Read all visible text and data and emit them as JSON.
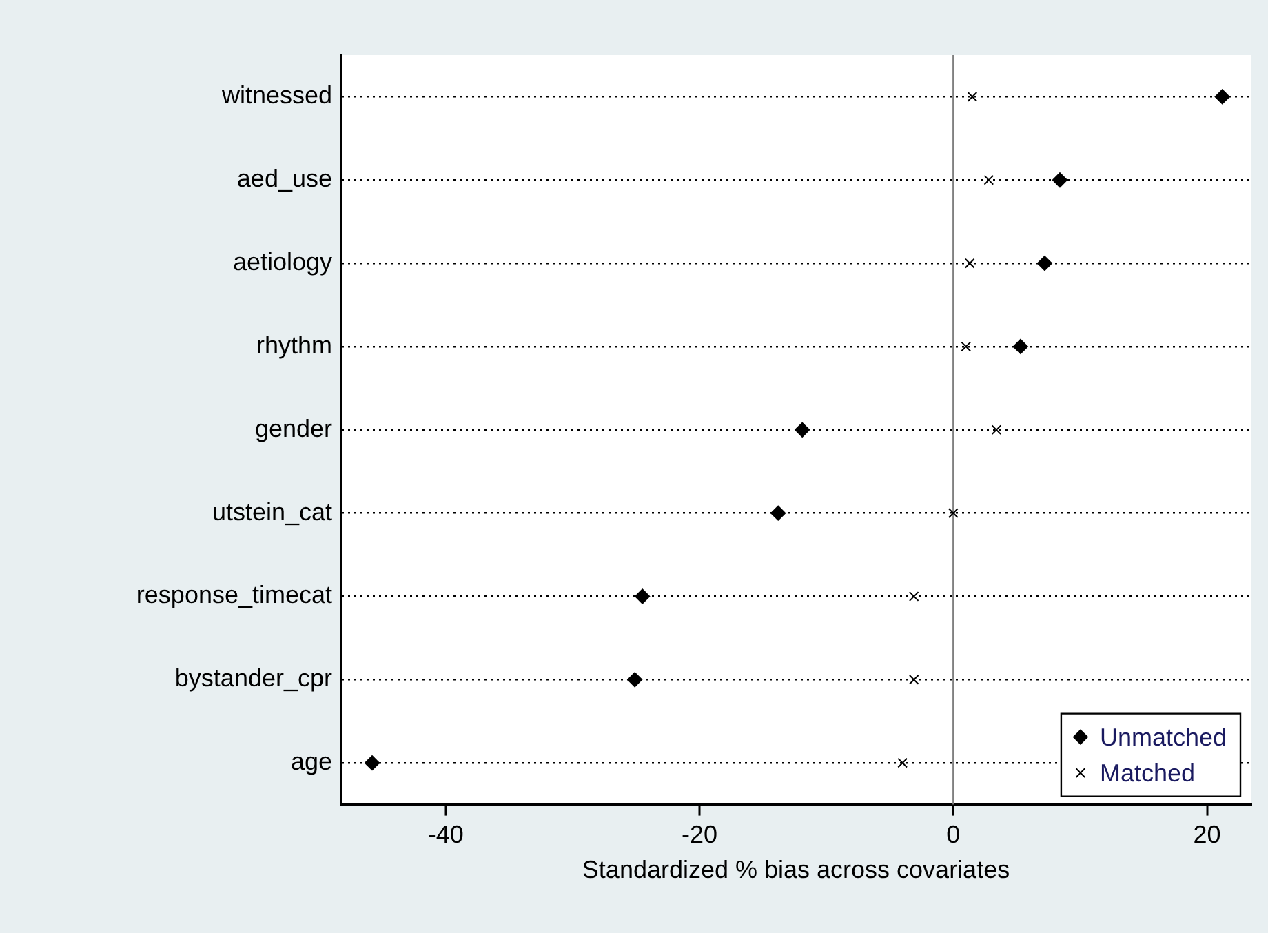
{
  "chart_data": {
    "type": "scatter",
    "orientation": "horizontal",
    "xlabel": "Standardized % bias across covariates",
    "categories": [
      "witnessed",
      "aed_use",
      "aetiology",
      "rhythm",
      "gender",
      "utstein_cat",
      "response_timecat",
      "bystander_cpr",
      "age"
    ],
    "series": [
      {
        "name": "Unmatched",
        "color": "#000000",
        "marker": "diamond",
        "values": [
          21.2,
          8.4,
          7.2,
          5.3,
          -11.9,
          -13.8,
          -24.5,
          -25.1,
          -45.8
        ]
      },
      {
        "name": "Matched",
        "color": "#000000",
        "marker": "cross",
        "values": [
          1.5,
          2.8,
          1.3,
          1.0,
          3.4,
          0.0,
          -3.1,
          -3.1,
          -4.0
        ]
      }
    ],
    "xlim": [
      -48.3,
      23.5
    ],
    "xticks": [
      -40,
      -20,
      0,
      20
    ],
    "ref_lines": [
      {
        "axis": "x",
        "value": 0,
        "color": "#808080"
      }
    ],
    "grid": "y",
    "line_style": "dotted",
    "legend": "bottom right"
  }
}
